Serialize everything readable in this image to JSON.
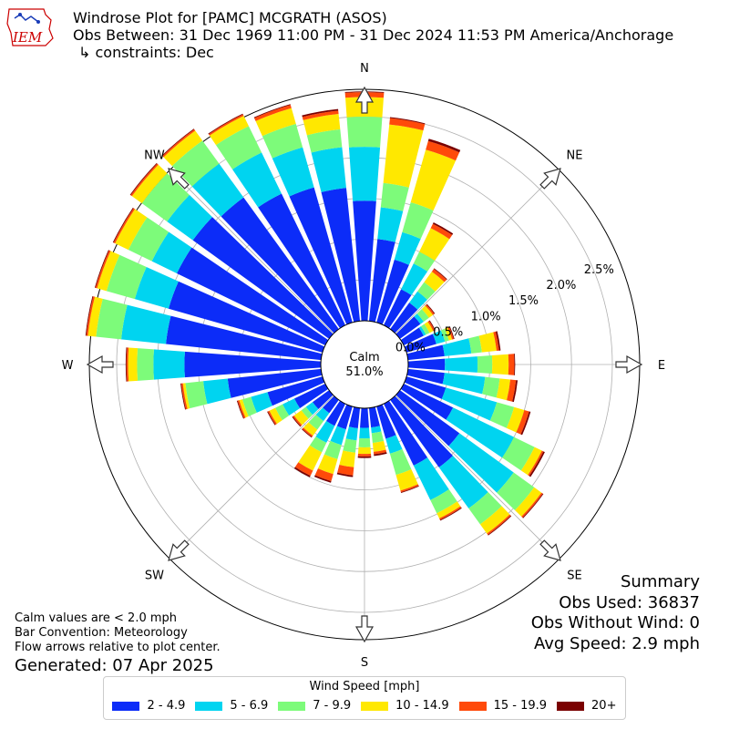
{
  "header": {
    "title": "Windrose Plot for [PAMC] MCGRATH (ASOS)",
    "obs_between": "Obs Between: 31 Dec 1969 11:00 PM - 31 Dec 2024 11:53 PM America/Anchorage",
    "constraints": "↳ constraints: Dec"
  },
  "logo": {
    "text": "IEM",
    "color": "#cc0000"
  },
  "summary": {
    "title": "Summary",
    "obs_used": "Obs Used: 36837",
    "obs_without_wind": "Obs Without Wind: 0",
    "avg_speed": "Avg Speed: 2.9 mph"
  },
  "notes": {
    "calm": "Calm values are < 2.0 mph",
    "bar_convention": "Bar Convention: Meteorology",
    "flow_arrows": "Flow arrows relative to plot center.",
    "generated": "Generated: 07 Apr 2025"
  },
  "chart_data": {
    "type": "windrose",
    "calm_label": "Calm",
    "calm_value": "51.0%",
    "radial_unit": "percent of observations",
    "radial_tick_values": [
      0.0,
      0.5,
      1.0,
      1.5,
      2.0,
      2.5
    ],
    "radial_tick_labels": [
      "0.0%",
      "0.5%",
      "1.0%",
      "1.5%",
      "2.0%",
      "2.5%"
    ],
    "compass_labels": [
      "N",
      "NE",
      "E",
      "SE",
      "S",
      "SW",
      "W",
      "NW"
    ],
    "direction_step_degrees": 10,
    "legend": {
      "title": "Wind Speed [mph]",
      "placement": "bottom-center",
      "bins": [
        "2 - 4.9",
        "5 - 6.9",
        "7 - 9.9",
        "10 - 14.9",
        "15 - 19.9",
        "20+"
      ],
      "colors": [
        "#0c2cf8",
        "#00d4f0",
        "#7dfb7a",
        "#ffe800",
        "#ff4a0a",
        "#7a0000"
      ]
    },
    "directions": [
      0,
      10,
      20,
      30,
      40,
      50,
      60,
      70,
      80,
      90,
      100,
      110,
      120,
      130,
      140,
      150,
      160,
      170,
      180,
      190,
      200,
      210,
      220,
      230,
      240,
      250,
      260,
      270,
      280,
      290,
      300,
      310,
      320,
      330,
      340,
      350
    ],
    "cumulative_percent": [
      [
        1.47,
        2.13,
        2.5,
        2.74,
        2.8,
        2.81
      ],
      [
        1.01,
        1.4,
        1.7,
        2.42,
        2.5,
        2.51
      ],
      [
        0.8,
        1.15,
        1.53,
        2.2,
        2.31,
        2.34
      ],
      [
        0.49,
        0.84,
        1.0,
        1.32,
        1.38,
        1.4
      ],
      [
        0.4,
        0.57,
        0.71,
        0.87,
        0.91,
        0.92
      ],
      [
        0.31,
        0.36,
        0.44,
        0.5,
        0.52,
        0.53
      ],
      [
        0.27,
        0.3,
        0.35,
        0.4,
        0.42,
        0.43
      ],
      [
        0.38,
        0.49,
        0.54,
        0.58,
        0.6,
        0.61
      ],
      [
        0.45,
        0.78,
        0.91,
        1.09,
        1.12,
        1.14
      ],
      [
        0.45,
        0.85,
        1.03,
        1.23,
        1.3,
        1.31
      ],
      [
        0.45,
        0.95,
        1.13,
        1.26,
        1.33,
        1.35
      ],
      [
        0.5,
        1.15,
        1.37,
        1.5,
        1.56,
        1.58
      ],
      [
        0.67,
        1.5,
        1.78,
        1.88,
        1.9,
        1.92
      ],
      [
        0.9,
        1.72,
        2.03,
        2.14,
        2.16,
        2.17
      ],
      [
        1.02,
        1.64,
        1.88,
        2.02,
        2.04,
        2.05
      ],
      [
        0.84,
        1.31,
        1.49,
        1.56,
        1.58,
        1.59
      ],
      [
        0.41,
        0.6,
        0.87,
        1.07,
        1.09,
        1.1
      ],
      [
        0.24,
        0.31,
        0.43,
        0.54,
        0.57,
        0.59
      ],
      [
        0.24,
        0.37,
        0.48,
        0.56,
        0.59,
        0.61
      ],
      [
        0.25,
        0.4,
        0.55,
        0.73,
        0.83,
        0.85
      ],
      [
        0.29,
        0.49,
        0.67,
        0.86,
        0.95,
        0.97
      ],
      [
        0.3,
        0.53,
        0.66,
        0.91,
        0.98,
        1.0
      ],
      [
        0.2,
        0.32,
        0.45,
        0.54,
        0.56,
        0.57
      ],
      [
        0.25,
        0.35,
        0.42,
        0.53,
        0.55,
        0.56
      ],
      [
        0.42,
        0.58,
        0.68,
        0.76,
        0.78,
        0.79
      ],
      [
        0.7,
        0.91,
        1.02,
        1.06,
        1.08,
        1.09
      ],
      [
        1.15,
        1.45,
        1.67,
        1.7,
        1.72,
        1.73
      ],
      [
        1.67,
        2.05,
        2.25,
        2.36,
        2.38,
        2.39
      ],
      [
        1.91,
        2.46,
        2.77,
        2.87,
        2.89,
        2.9
      ],
      [
        1.96,
        2.39,
        2.75,
        2.87,
        2.89,
        2.9
      ],
      [
        2.02,
        2.36,
        2.68,
        2.86,
        2.88,
        2.89
      ],
      [
        2.06,
        2.45,
        2.83,
        2.98,
        3.0,
        3.01
      ],
      [
        1.99,
        2.5,
        2.85,
        3.0,
        3.02,
        3.03
      ],
      [
        1.79,
        2.35,
        2.71,
        2.85,
        2.87,
        2.88
      ],
      [
        1.72,
        2.23,
        2.53,
        2.73,
        2.77,
        2.78
      ],
      [
        1.64,
        2.14,
        2.36,
        2.55,
        2.59,
        2.61
      ]
    ],
    "grid": true
  }
}
